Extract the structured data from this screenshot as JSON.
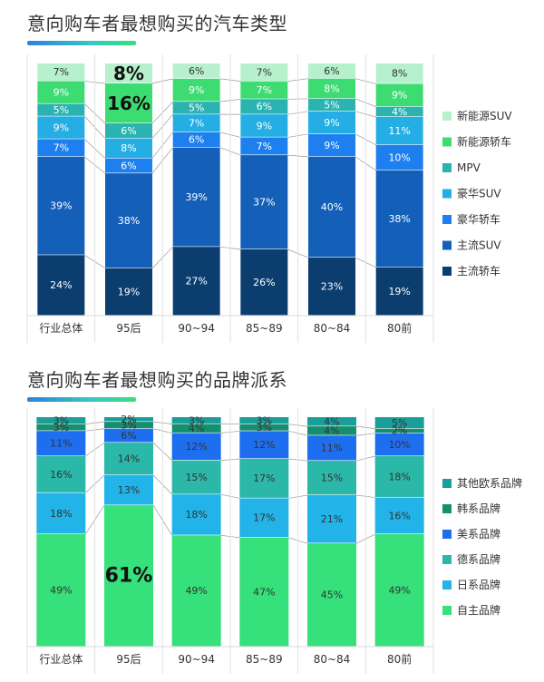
{
  "chart_data": [
    {
      "type": "bar",
      "stacked": true,
      "normalized": true,
      "title": "意向购车者最想购买的汽车类型",
      "categories": [
        "行业总体",
        "95后",
        "90~94",
        "85~89",
        "80~84",
        "80前"
      ],
      "series": [
        {
          "name": "主流轿车",
          "color": "#0b3d6e",
          "values": [
            24,
            19,
            27,
            26,
            23,
            19
          ]
        },
        {
          "name": "主流SUV",
          "color": "#1460b8",
          "values": [
            39,
            38,
            39,
            37,
            40,
            38
          ]
        },
        {
          "name": "豪华轿车",
          "color": "#1e7fee",
          "values": [
            7,
            6,
            6,
            7,
            9,
            10
          ]
        },
        {
          "name": "豪华SUV",
          "color": "#25aee3",
          "values": [
            9,
            8,
            7,
            9,
            9,
            11
          ]
        },
        {
          "name": "MPV",
          "color": "#2ab3b0",
          "values": [
            5,
            6,
            5,
            6,
            5,
            4
          ]
        },
        {
          "name": "新能源轿车",
          "color": "#3ddc73",
          "values": [
            9,
            16,
            9,
            7,
            8,
            9
          ]
        },
        {
          "name": "新能源SUV",
          "color": "#b6f0cc",
          "values": [
            7,
            8,
            6,
            7,
            6,
            8
          ]
        }
      ],
      "highlights": [
        {
          "category": "95后",
          "series": "新能源SUV"
        },
        {
          "category": "95后",
          "series": "新能源轿车"
        }
      ],
      "ylim": [
        0,
        100
      ],
      "legend": "right"
    },
    {
      "type": "bar",
      "stacked": true,
      "normalized": true,
      "title": "意向购车者最想购买的品牌派系",
      "categories": [
        "行业总体",
        "95后",
        "90~94",
        "85~89",
        "80~84",
        "80前"
      ],
      "series": [
        {
          "name": "自主品牌",
          "color": "#36e07a",
          "values": [
            49,
            61,
            49,
            47,
            45,
            49
          ]
        },
        {
          "name": "日系品牌",
          "color": "#22b4e8",
          "values": [
            18,
            13,
            18,
            17,
            21,
            16
          ]
        },
        {
          "name": "德系品牌",
          "color": "#2bb8a8",
          "values": [
            16,
            14,
            15,
            17,
            15,
            18
          ]
        },
        {
          "name": "美系品牌",
          "color": "#1e6ff0",
          "values": [
            11,
            6,
            12,
            12,
            11,
            10
          ]
        },
        {
          "name": "韩系品牌",
          "color": "#168f6e",
          "values": [
            3,
            3,
            4,
            3,
            4,
            2
          ]
        },
        {
          "name": "其他欧系品牌",
          "color": "#1a9e9a",
          "values": [
            3,
            2,
            3,
            3,
            4,
            5
          ]
        }
      ],
      "highlights": [
        {
          "category": "95后",
          "series": "自主品牌"
        }
      ],
      "ylim": [
        0,
        100
      ],
      "legend": "right"
    }
  ]
}
